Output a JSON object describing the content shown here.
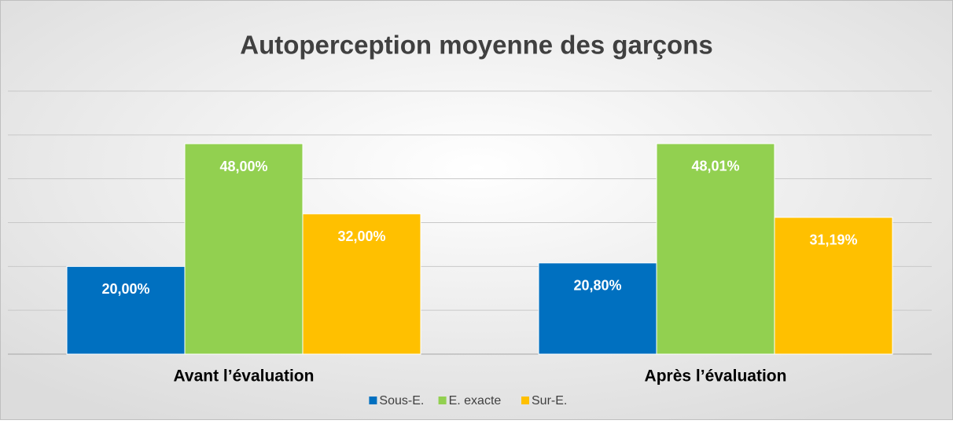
{
  "chart_data": {
    "type": "bar",
    "title": "Autoperception moyenne des garçons",
    "categories": [
      "Avant l’évaluation",
      "Après l’évaluation"
    ],
    "series": [
      {
        "name": "Sous-E.",
        "color": "#0070c0",
        "values": [
          20.0,
          20.8
        ],
        "value_labels": [
          "20,00%",
          "20,80%"
        ]
      },
      {
        "name": "E. exacte",
        "color": "#92d050",
        "values": [
          48.0,
          48.01
        ],
        "value_labels": [
          "48,00%",
          "48,01%"
        ]
      },
      {
        "name": "Sur-E.",
        "color": "#ffc000",
        "values": [
          32.0,
          31.19
        ],
        "value_labels": [
          "32,00%",
          "31,19%"
        ]
      }
    ],
    "ylim": [
      0,
      60
    ],
    "yticks": [
      0,
      10,
      20,
      30,
      40,
      50,
      60
    ],
    "grid": true,
    "legend": "bottom"
  }
}
